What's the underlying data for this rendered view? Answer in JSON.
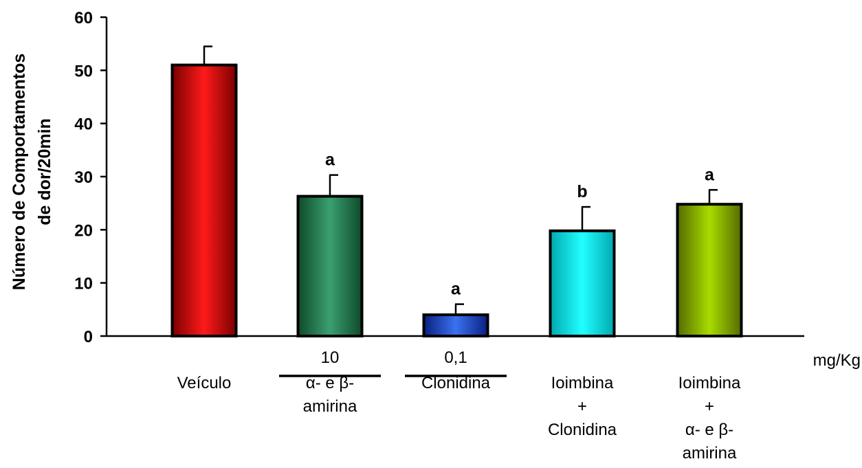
{
  "chart_data": {
    "type": "bar",
    "ylabel": [
      "Número de Comportamentos",
      "de dor/20min"
    ],
    "ylim": [
      0,
      60
    ],
    "yticks": [
      0,
      10,
      20,
      30,
      40,
      50,
      60
    ],
    "grid": false,
    "dose_unit": "mg/Kg",
    "bars": [
      {
        "label_lines": [
          "Veículo"
        ],
        "value": 51,
        "error": 3.5,
        "significance": "",
        "dose": "",
        "underline": false,
        "colors": [
          "#7a0000",
          "#ff1a1a",
          "#7a0000"
        ]
      },
      {
        "label_lines": [
          "α- e β-",
          "amirina"
        ],
        "value": 26.3,
        "error": 4.0,
        "significance": "a",
        "dose": "10",
        "underline": true,
        "colors": [
          "#0f4a2a",
          "#3aa070",
          "#0f4a2a"
        ]
      },
      {
        "label_lines": [
          "Clonidina"
        ],
        "value": 4,
        "error": 2.0,
        "significance": "a",
        "dose": "0,1",
        "underline": true,
        "colors": [
          "#0a1f80",
          "#3a72f0",
          "#0a1f80"
        ]
      },
      {
        "label_lines": [
          "Ioimbina",
          "+",
          "Clonidina"
        ],
        "value": 19.8,
        "error": 4.5,
        "significance": "b",
        "dose": "",
        "underline": false,
        "colors": [
          "#00a8b0",
          "#22ffff",
          "#00a8b0"
        ]
      },
      {
        "label_lines": [
          "Ioimbina",
          "+",
          "α- e β-",
          "amirina"
        ],
        "value": 24.8,
        "error": 2.7,
        "significance": "a",
        "dose": "",
        "underline": false,
        "colors": [
          "#556b00",
          "#a8dc00",
          "#556b00"
        ]
      }
    ]
  }
}
